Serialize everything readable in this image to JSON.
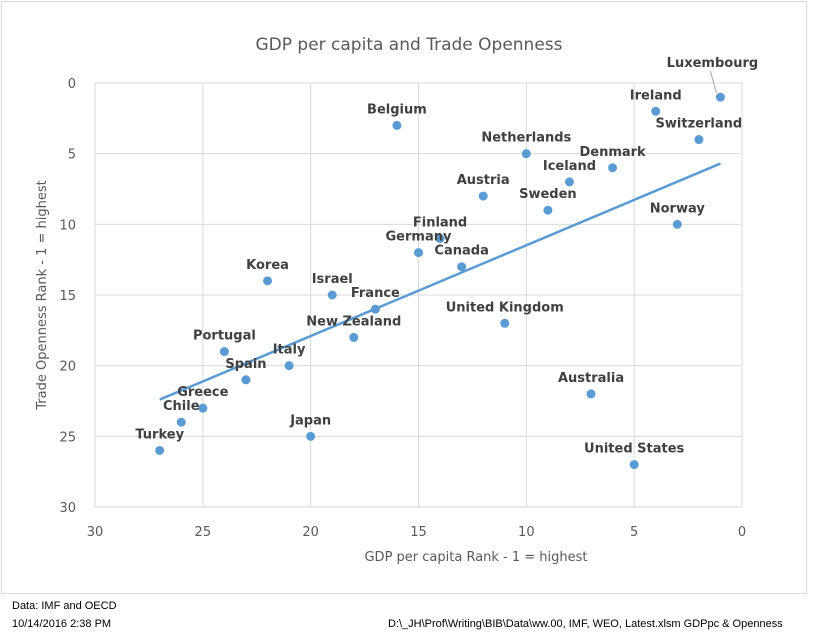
{
  "chart_data": {
    "type": "scatter",
    "title": "GDP per capita and Trade Openness",
    "xlabel": "GDP per capita Rank - 1 = highest",
    "ylabel": "Trade Openness Rank - 1 = highest",
    "xlim": [
      30,
      0
    ],
    "ylim": [
      30,
      0
    ],
    "x_reversed": true,
    "y_reversed": true,
    "xticks": [
      30,
      25,
      20,
      15,
      10,
      5,
      0
    ],
    "yticks": [
      0,
      5,
      10,
      15,
      20,
      25,
      30
    ],
    "grid": true,
    "point_color": "#5b9bd5",
    "trendline": {
      "type": "linear",
      "color": "#5b9bd5",
      "x": [
        27,
        1
      ],
      "y": [
        22.4,
        5.7
      ]
    },
    "points": [
      {
        "label": "Luxembourg",
        "x": 1,
        "y": 1
      },
      {
        "label": "Ireland",
        "x": 4,
        "y": 2
      },
      {
        "label": "Switzerland",
        "x": 2,
        "y": 4
      },
      {
        "label": "Belgium",
        "x": 16,
        "y": 3
      },
      {
        "label": "Netherlands",
        "x": 10,
        "y": 5
      },
      {
        "label": "Denmark",
        "x": 6,
        "y": 6
      },
      {
        "label": "Iceland",
        "x": 8,
        "y": 7
      },
      {
        "label": "Austria",
        "x": 12,
        "y": 8
      },
      {
        "label": "Sweden",
        "x": 9,
        "y": 9
      },
      {
        "label": "Norway",
        "x": 3,
        "y": 10
      },
      {
        "label": "Finland",
        "x": 14,
        "y": 11
      },
      {
        "label": "Germany",
        "x": 15,
        "y": 12
      },
      {
        "label": "Canada",
        "x": 13,
        "y": 13
      },
      {
        "label": "Korea",
        "x": 22,
        "y": 14
      },
      {
        "label": "Israel",
        "x": 19,
        "y": 15
      },
      {
        "label": "France",
        "x": 17,
        "y": 16
      },
      {
        "label": "United Kingdom",
        "x": 11,
        "y": 17
      },
      {
        "label": "New Zealand",
        "x": 18,
        "y": 18
      },
      {
        "label": "Portugal",
        "x": 24,
        "y": 19
      },
      {
        "label": "Italy",
        "x": 21,
        "y": 20
      },
      {
        "label": "Spain",
        "x": 23,
        "y": 21
      },
      {
        "label": "Australia",
        "x": 7,
        "y": 22
      },
      {
        "label": "Greece",
        "x": 25,
        "y": 23
      },
      {
        "label": "Chile",
        "x": 26,
        "y": 24
      },
      {
        "label": "Japan",
        "x": 20,
        "y": 25
      },
      {
        "label": "Turkey",
        "x": 27,
        "y": 26
      },
      {
        "label": "United States",
        "x": 5,
        "y": 27
      }
    ]
  },
  "footer": {
    "source": "Data: IMF and OECD",
    "timestamp": "10/14/2016  2:38 PM",
    "filepath": "D:\\_JH\\Prof\\Writing\\BIB\\Data\\ww.00, IMF, WEO, Latest.xlsm GDPpc & Openness"
  }
}
